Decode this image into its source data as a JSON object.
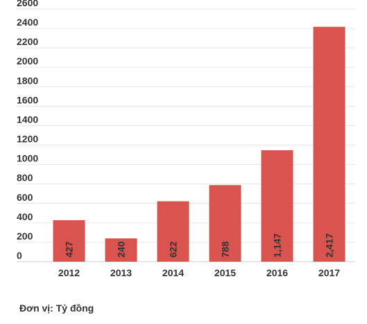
{
  "chart_data": {
    "type": "bar",
    "categories": [
      "2012",
      "2013",
      "2014",
      "2015",
      "2016",
      "2017"
    ],
    "values": [
      427,
      240,
      622,
      788,
      1147,
      2417
    ],
    "value_labels": [
      "427",
      "240",
      "622",
      "788",
      "1,147",
      "2,417"
    ],
    "ylim": [
      0,
      2600
    ],
    "yticks": [
      0,
      200,
      400,
      600,
      800,
      1000,
      1200,
      1400,
      1600,
      1800,
      2000,
      2200,
      2400,
      2600
    ],
    "grid": true,
    "bar_color": "#d9534f"
  },
  "footnote": "Đơn vị: Tỷ đồng"
}
